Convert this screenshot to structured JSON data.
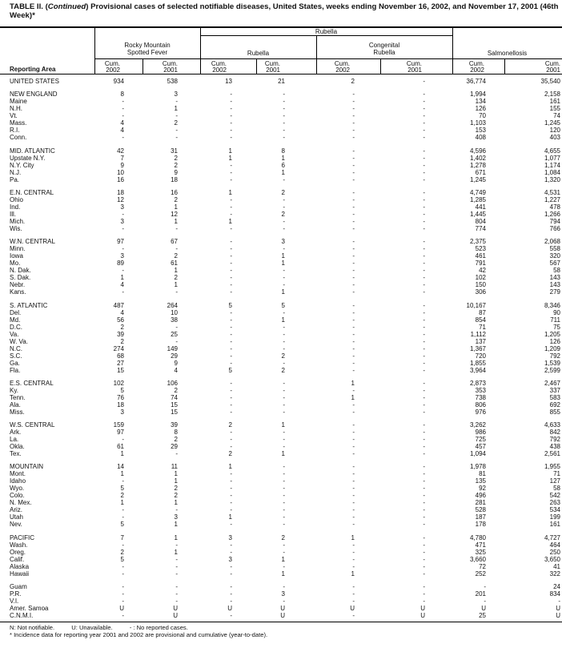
{
  "title": {
    "prefix": "TABLE II. (",
    "italic": "Continued",
    "rest": ") Provisional cases of selected notifiable diseases, United States, weeks ending November 16, 2002, and November 17, 2001 (46th Week)*"
  },
  "header": {
    "reporting_area": "Reporting Area",
    "rubella_group": "Rubella",
    "rmsf_line1": "Rocky Mountain",
    "rmsf_line2": "Spotted Fever",
    "rubella": "Rubella",
    "congenital_line1": "Congenital",
    "congenital_line2": "Rubella",
    "salmonellosis": "Salmonellosis",
    "cum": "Cum.",
    "y2002": "2002",
    "y2001": "2001"
  },
  "groups": [
    [
      [
        "UNITED STATES",
        "934",
        "538",
        "13",
        "21",
        "2",
        "-",
        "36,774",
        "35,540"
      ]
    ],
    [
      [
        "NEW ENGLAND",
        "8",
        "3",
        "-",
        "-",
        "-",
        "-",
        "1,994",
        "2,158"
      ],
      [
        "Maine",
        "-",
        "-",
        "-",
        "-",
        "-",
        "-",
        "134",
        "161"
      ],
      [
        "N.H.",
        "-",
        "1",
        "-",
        "-",
        "-",
        "-",
        "126",
        "155"
      ],
      [
        "Vt.",
        "-",
        "-",
        "-",
        "-",
        "-",
        "-",
        "70",
        "74"
      ],
      [
        "Mass.",
        "4",
        "2",
        "-",
        "-",
        "-",
        "-",
        "1,103",
        "1,245"
      ],
      [
        "R.I.",
        "4",
        "-",
        "-",
        "-",
        "-",
        "-",
        "153",
        "120"
      ],
      [
        "Conn.",
        "-",
        "-",
        "-",
        "-",
        "-",
        "-",
        "408",
        "403"
      ]
    ],
    [
      [
        "MID. ATLANTIC",
        "42",
        "31",
        "1",
        "8",
        "-",
        "-",
        "4,596",
        "4,655"
      ],
      [
        "Upstate N.Y.",
        "7",
        "2",
        "1",
        "1",
        "-",
        "-",
        "1,402",
        "1,077"
      ],
      [
        "N.Y. City",
        "9",
        "2",
        "-",
        "6",
        "-",
        "-",
        "1,278",
        "1,174"
      ],
      [
        "N.J.",
        "10",
        "9",
        "-",
        "1",
        "-",
        "-",
        "671",
        "1,084"
      ],
      [
        "Pa.",
        "16",
        "18",
        "-",
        "-",
        "-",
        "-",
        "1,245",
        "1,320"
      ]
    ],
    [
      [
        "E.N. CENTRAL",
        "18",
        "16",
        "1",
        "2",
        "-",
        "-",
        "4,749",
        "4,531"
      ],
      [
        "Ohio",
        "12",
        "2",
        "-",
        "-",
        "-",
        "-",
        "1,285",
        "1,227"
      ],
      [
        "Ind.",
        "3",
        "1",
        "-",
        "-",
        "-",
        "-",
        "441",
        "478"
      ],
      [
        "Ill.",
        "-",
        "12",
        "-",
        "2",
        "-",
        "-",
        "1,445",
        "1,266"
      ],
      [
        "Mich.",
        "3",
        "1",
        "1",
        "-",
        "-",
        "-",
        "804",
        "794"
      ],
      [
        "Wis.",
        "-",
        "-",
        "-",
        "-",
        "-",
        "-",
        "774",
        "766"
      ]
    ],
    [
      [
        "W.N. CENTRAL",
        "97",
        "67",
        "-",
        "3",
        "-",
        "-",
        "2,375",
        "2,068"
      ],
      [
        "Minn.",
        "-",
        "-",
        "-",
        "-",
        "-",
        "-",
        "523",
        "558"
      ],
      [
        "Iowa",
        "3",
        "2",
        "-",
        "1",
        "-",
        "-",
        "461",
        "320"
      ],
      [
        "Mo.",
        "89",
        "61",
        "-",
        "1",
        "-",
        "-",
        "791",
        "567"
      ],
      [
        "N. Dak.",
        "-",
        "1",
        "-",
        "-",
        "-",
        "-",
        "42",
        "58"
      ],
      [
        "S. Dak.",
        "1",
        "2",
        "-",
        "-",
        "-",
        "-",
        "102",
        "143"
      ],
      [
        "Nebr.",
        "4",
        "1",
        "-",
        "-",
        "-",
        "-",
        "150",
        "143"
      ],
      [
        "Kans.",
        "-",
        "-",
        "-",
        "1",
        "-",
        "-",
        "306",
        "279"
      ]
    ],
    [
      [
        "S. ATLANTIC",
        "487",
        "264",
        "5",
        "5",
        "-",
        "-",
        "10,167",
        "8,346"
      ],
      [
        "Del.",
        "4",
        "10",
        "-",
        "-",
        "-",
        "-",
        "87",
        "90"
      ],
      [
        "Md.",
        "56",
        "38",
        "-",
        "1",
        "-",
        "-",
        "854",
        "711"
      ],
      [
        "D.C.",
        "2",
        "-",
        "-",
        "-",
        "-",
        "-",
        "71",
        "75"
      ],
      [
        "Va.",
        "39",
        "25",
        "-",
        "-",
        "-",
        "-",
        "1,112",
        "1,205"
      ],
      [
        "W. Va.",
        "2",
        "-",
        "-",
        "-",
        "-",
        "-",
        "137",
        "126"
      ],
      [
        "N.C.",
        "274",
        "149",
        "-",
        "-",
        "-",
        "-",
        "1,367",
        "1,209"
      ],
      [
        "S.C.",
        "68",
        "29",
        "-",
        "2",
        "-",
        "-",
        "720",
        "792"
      ],
      [
        "Ga.",
        "27",
        "9",
        "-",
        "-",
        "-",
        "-",
        "1,855",
        "1,539"
      ],
      [
        "Fla.",
        "15",
        "4",
        "5",
        "2",
        "-",
        "-",
        "3,964",
        "2,599"
      ]
    ],
    [
      [
        "E.S. CENTRAL",
        "102",
        "106",
        "-",
        "-",
        "1",
        "-",
        "2,873",
        "2,467"
      ],
      [
        "Ky.",
        "5",
        "2",
        "-",
        "-",
        "-",
        "-",
        "353",
        "337"
      ],
      [
        "Tenn.",
        "76",
        "74",
        "-",
        "-",
        "1",
        "-",
        "738",
        "583"
      ],
      [
        "Ala.",
        "18",
        "15",
        "-",
        "-",
        "-",
        "-",
        "806",
        "692"
      ],
      [
        "Miss.",
        "3",
        "15",
        "-",
        "-",
        "-",
        "-",
        "976",
        "855"
      ]
    ],
    [
      [
        "W.S. CENTRAL",
        "159",
        "39",
        "2",
        "1",
        "-",
        "-",
        "3,262",
        "4,633"
      ],
      [
        "Ark.",
        "97",
        "8",
        "-",
        "-",
        "-",
        "-",
        "986",
        "842"
      ],
      [
        "La.",
        "-",
        "2",
        "-",
        "-",
        "-",
        "-",
        "725",
        "792"
      ],
      [
        "Okla.",
        "61",
        "29",
        "-",
        "-",
        "-",
        "-",
        "457",
        "438"
      ],
      [
        "Tex.",
        "1",
        "-",
        "2",
        "1",
        "-",
        "-",
        "1,094",
        "2,561"
      ]
    ],
    [
      [
        "MOUNTAIN",
        "14",
        "11",
        "1",
        "-",
        "-",
        "-",
        "1,978",
        "1,955"
      ],
      [
        "Mont.",
        "1",
        "1",
        "-",
        "-",
        "-",
        "-",
        "81",
        "71"
      ],
      [
        "Idaho",
        "-",
        "1",
        "-",
        "-",
        "-",
        "-",
        "135",
        "127"
      ],
      [
        "Wyo.",
        "5",
        "2",
        "-",
        "-",
        "-",
        "-",
        "92",
        "58"
      ],
      [
        "Colo.",
        "2",
        "2",
        "-",
        "-",
        "-",
        "-",
        "496",
        "542"
      ],
      [
        "N. Mex.",
        "1",
        "1",
        "-",
        "-",
        "-",
        "-",
        "281",
        "263"
      ],
      [
        "Ariz.",
        "-",
        "-",
        "-",
        "-",
        "-",
        "-",
        "528",
        "534"
      ],
      [
        "Utah",
        "-",
        "3",
        "1",
        "-",
        "-",
        "-",
        "187",
        "199"
      ],
      [
        "Nev.",
        "5",
        "1",
        "-",
        "-",
        "-",
        "-",
        "178",
        "161"
      ]
    ],
    [
      [
        "PACIFIC",
        "7",
        "1",
        "3",
        "2",
        "1",
        "-",
        "4,780",
        "4,727"
      ],
      [
        "Wash.",
        "-",
        "-",
        "-",
        "-",
        "-",
        "-",
        "471",
        "464"
      ],
      [
        "Oreg.",
        "2",
        "1",
        "-",
        "-",
        "-",
        "-",
        "325",
        "250"
      ],
      [
        "Calif.",
        "5",
        "-",
        "3",
        "1",
        "-",
        "-",
        "3,660",
        "3,650"
      ],
      [
        "Alaska",
        "-",
        "-",
        "-",
        "-",
        "-",
        "-",
        "72",
        "41"
      ],
      [
        "Hawaii",
        "-",
        "-",
        "-",
        "1",
        "1",
        "-",
        "252",
        "322"
      ]
    ],
    [
      [
        "Guam",
        "-",
        "-",
        "-",
        "-",
        "-",
        "-",
        "-",
        "24"
      ],
      [
        "P.R.",
        "-",
        "-",
        "-",
        "3",
        "-",
        "-",
        "201",
        "834"
      ],
      [
        "V.I.",
        "-",
        "-",
        "-",
        "-",
        "-",
        "-",
        "-",
        "-"
      ],
      [
        "Amer. Samoa",
        "U",
        "U",
        "U",
        "U",
        "U",
        "U",
        "U",
        "U"
      ],
      [
        "C.N.M.I.",
        "-",
        "U",
        "-",
        "U",
        "-",
        "U",
        "25",
        "U"
      ]
    ]
  ],
  "footer": {
    "legend": "N: Not notifiable.          U: Unavailable.          - : No reported cases.",
    "note": "* Incidence data for reporting year 2001 and 2002 are provisional and cumulative (year-to-date)."
  }
}
